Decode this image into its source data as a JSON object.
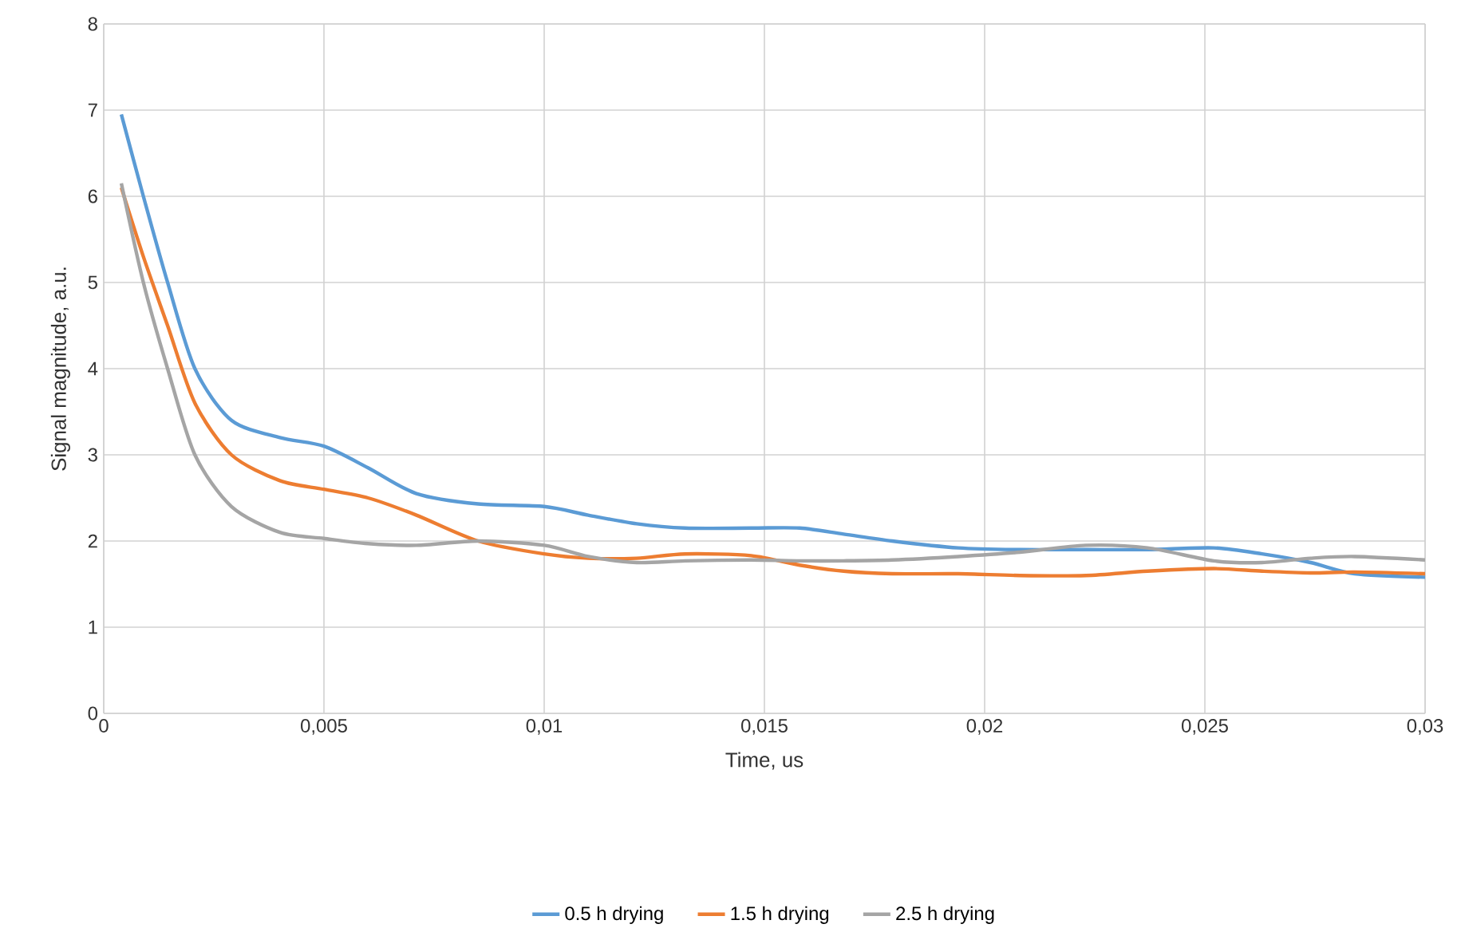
{
  "chart_data": {
    "type": "line",
    "xlabel": "Time, us",
    "ylabel": "Signal magnitude, a.u.",
    "xlim": [
      0,
      0.03
    ],
    "ylim": [
      0,
      8
    ],
    "xticks": [
      {
        "value": 0,
        "label": "0"
      },
      {
        "value": 0.005,
        "label": "0,005"
      },
      {
        "value": 0.01,
        "label": "0,01"
      },
      {
        "value": 0.015,
        "label": "0,015"
      },
      {
        "value": 0.02,
        "label": "0,02"
      },
      {
        "value": 0.025,
        "label": "0,025"
      },
      {
        "value": 0.03,
        "label": "0,03"
      }
    ],
    "yticks": [
      0,
      1,
      2,
      3,
      4,
      5,
      6,
      7,
      8
    ],
    "grid": true,
    "legend": "bottom",
    "x": [
      0.0004,
      0.0009,
      0.00145,
      0.00207,
      0.0029,
      0.004,
      0.005,
      0.006,
      0.0071,
      0.0085,
      0.01,
      0.011,
      0.0121,
      0.0132,
      0.0147,
      0.0158,
      0.0168,
      0.0179,
      0.0194,
      0.0208,
      0.0223,
      0.0237,
      0.0252,
      0.0263,
      0.0274,
      0.0284,
      0.03
    ],
    "series": [
      {
        "name": "0.5 h drying",
        "color": "#5b9bd5",
        "values": [
          6.95,
          6.0,
          5.0,
          4.0,
          3.4,
          3.2,
          3.1,
          2.85,
          2.55,
          2.43,
          2.4,
          2.3,
          2.2,
          2.15,
          2.15,
          2.15,
          2.08,
          2.0,
          1.92,
          1.9,
          1.9,
          1.9,
          1.92,
          1.85,
          1.75,
          1.62,
          1.58
        ]
      },
      {
        "name": "1.5 h drying",
        "color": "#ed7d31",
        "values": [
          6.1,
          5.3,
          4.5,
          3.6,
          3.0,
          2.7,
          2.6,
          2.5,
          2.3,
          2.0,
          1.85,
          1.8,
          1.8,
          1.85,
          1.83,
          1.72,
          1.65,
          1.62,
          1.62,
          1.6,
          1.6,
          1.65,
          1.68,
          1.65,
          1.63,
          1.64,
          1.62
        ]
      },
      {
        "name": "2.5 h drying",
        "color": "#a5a5a5",
        "values": [
          6.15,
          5.0,
          4.0,
          3.0,
          2.4,
          2.1,
          2.03,
          1.97,
          1.95,
          2.0,
          1.95,
          1.82,
          1.75,
          1.77,
          1.78,
          1.77,
          1.77,
          1.78,
          1.82,
          1.87,
          1.95,
          1.92,
          1.77,
          1.75,
          1.8,
          1.82,
          1.78
        ]
      }
    ]
  }
}
